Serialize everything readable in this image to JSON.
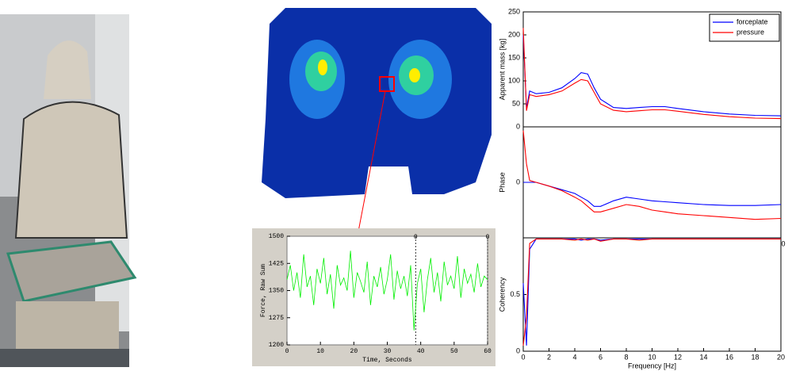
{
  "chart_data": [
    {
      "type": "line",
      "xlabel": "Time, Seconds",
      "ylabel": "Force, Raw Sum",
      "xlim": [
        0,
        60
      ],
      "ylim": [
        1200,
        1500
      ],
      "xticks": [
        0,
        10,
        20,
        30,
        40,
        50,
        60
      ],
      "yticks": [
        1200,
        1275,
        1350,
        1425,
        1500
      ],
      "cursors": [
        {
          "x": 38.5,
          "label": "0"
        },
        {
          "x": 60,
          "label": "0"
        }
      ],
      "x": [
        0,
        1,
        2,
        3,
        4,
        5,
        6,
        7,
        8,
        9,
        10,
        11,
        12,
        13,
        14,
        15,
        16,
        17,
        18,
        19,
        20,
        21,
        22,
        23,
        24,
        25,
        26,
        27,
        28,
        29,
        30,
        31,
        32,
        33,
        34,
        35,
        36,
        37,
        38,
        39,
        40,
        41,
        42,
        43,
        44,
        45,
        46,
        47,
        48,
        49,
        50,
        51,
        52,
        53,
        54,
        55,
        56,
        57,
        58,
        59,
        60
      ],
      "series": [
        {
          "color": "#00ee00",
          "values": [
            1380,
            1420,
            1350,
            1400,
            1330,
            1450,
            1360,
            1390,
            1310,
            1410,
            1370,
            1440,
            1340,
            1395,
            1300,
            1420,
            1365,
            1385,
            1350,
            1460,
            1330,
            1400,
            1375,
            1345,
            1430,
            1310,
            1390,
            1360,
            1415,
            1340,
            1380,
            1450,
            1325,
            1405,
            1355,
            1390,
            1335,
            1420,
            1240,
            1370,
            1410,
            1290,
            1380,
            1440,
            1345,
            1400,
            1320,
            1430,
            1365,
            1390,
            1355,
            1445,
            1330,
            1410,
            1370,
            1395,
            1345,
            1425,
            1360,
            1390,
            1380
          ]
        }
      ]
    },
    {
      "type": "line",
      "ylabel": "Apparent mass [kg]",
      "xlim": [
        0,
        20
      ],
      "ylim": [
        0,
        250
      ],
      "yticks": [
        0,
        50,
        100,
        150,
        200,
        250
      ],
      "legend": "upper right",
      "x": [
        0,
        0.25,
        0.5,
        1,
        2,
        3,
        4,
        4.5,
        5,
        5.5,
        6,
        7,
        8,
        9,
        10,
        11,
        12,
        14,
        16,
        18,
        20
      ],
      "series": [
        {
          "name": "forceplate",
          "color": "#0000ff",
          "values": [
            200,
            40,
            78,
            72,
            75,
            85,
            105,
            118,
            115,
            85,
            60,
            42,
            40,
            42,
            44,
            44,
            40,
            33,
            28,
            25,
            24
          ]
        },
        {
          "name": "pressure",
          "color": "#ff0000",
          "values": [
            215,
            35,
            70,
            66,
            70,
            78,
            95,
            103,
            100,
            75,
            50,
            36,
            33,
            35,
            37,
            37,
            34,
            27,
            22,
            19,
            18
          ]
        }
      ]
    },
    {
      "type": "line",
      "ylabel": "Phase",
      "xlim": [
        0,
        20
      ],
      "ylim": [
        -3,
        3
      ],
      "yticks": [
        0
      ],
      "annotation": "0",
      "x": [
        0,
        0.25,
        0.5,
        1,
        2,
        3,
        4,
        4.5,
        5,
        5.5,
        6,
        7,
        8,
        9,
        10,
        11,
        12,
        14,
        16,
        18,
        20
      ],
      "series": [
        {
          "name": "forceplate",
          "color": "#0000ff",
          "values": [
            0,
            0,
            0,
            0,
            -0.2,
            -0.4,
            -0.6,
            -0.8,
            -1.0,
            -1.3,
            -1.3,
            -1.0,
            -0.8,
            -0.9,
            -1.0,
            -1.05,
            -1.1,
            -1.2,
            -1.25,
            -1.25,
            -1.2
          ]
        },
        {
          "name": "pressure",
          "color": "#ff0000",
          "values": [
            2.8,
            1.0,
            0.1,
            0,
            -0.2,
            -0.45,
            -0.8,
            -1.0,
            -1.3,
            -1.6,
            -1.6,
            -1.4,
            -1.2,
            -1.3,
            -1.5,
            -1.6,
            -1.7,
            -1.8,
            -1.9,
            -2.0,
            -1.95
          ]
        }
      ]
    },
    {
      "type": "line",
      "ylabel": "Coherency",
      "xlabel": "Frequency [Hz]",
      "xlim": [
        0,
        20
      ],
      "ylim": [
        0,
        1
      ],
      "yticks": [
        0,
        0.5
      ],
      "xticks": [
        0,
        2,
        4,
        6,
        8,
        10,
        12,
        14,
        16,
        18,
        20
      ],
      "x": [
        0,
        0.25,
        0.5,
        1,
        2,
        3,
        4,
        4.5,
        5,
        5.5,
        6,
        7,
        8,
        9,
        10,
        11,
        12,
        14,
        16,
        18,
        20
      ],
      "series": [
        {
          "name": "forceplate",
          "color": "#0000ff",
          "values": [
            0.6,
            0.05,
            0.9,
            0.99,
            0.99,
            0.99,
            0.99,
            0.98,
            0.99,
            0.99,
            0.98,
            0.99,
            0.99,
            0.99,
            0.99,
            0.99,
            0.99,
            0.99,
            0.99,
            0.99,
            0.99
          ]
        },
        {
          "name": "pressure",
          "color": "#ff0000",
          "values": [
            0.05,
            0.3,
            0.95,
            0.99,
            0.99,
            0.99,
            0.98,
            0.99,
            0.98,
            0.99,
            0.97,
            0.99,
            0.99,
            0.98,
            0.99,
            0.99,
            0.99,
            0.99,
            0.99,
            0.99,
            0.99
          ]
        }
      ]
    }
  ]
}
